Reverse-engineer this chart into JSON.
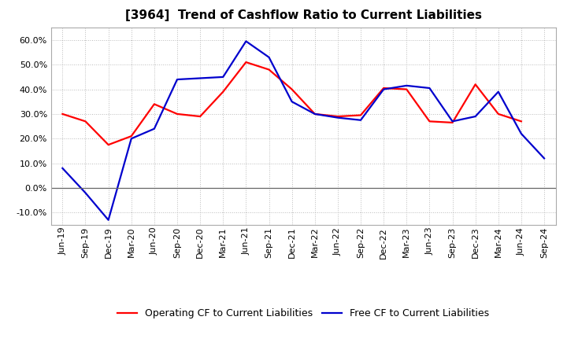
{
  "title": "[3964]  Trend of Cashflow Ratio to Current Liabilities",
  "x_labels": [
    "Jun-19",
    "Sep-19",
    "Dec-19",
    "Mar-20",
    "Jun-20",
    "Sep-20",
    "Dec-20",
    "Mar-21",
    "Jun-21",
    "Sep-21",
    "Dec-21",
    "Mar-22",
    "Jun-22",
    "Sep-22",
    "Dec-22",
    "Mar-23",
    "Jun-23",
    "Sep-23",
    "Dec-23",
    "Mar-24",
    "Jun-24",
    "Sep-24"
  ],
  "operating_cf": [
    30.0,
    27.0,
    17.5,
    21.0,
    34.0,
    30.0,
    29.0,
    39.0,
    51.0,
    48.0,
    40.0,
    30.0,
    29.0,
    29.5,
    40.5,
    40.0,
    27.0,
    26.5,
    42.0,
    30.0,
    27.0,
    null
  ],
  "free_cf": [
    8.0,
    -2.0,
    -13.0,
    20.0,
    24.0,
    44.0,
    44.5,
    45.0,
    59.5,
    53.0,
    35.0,
    30.0,
    28.5,
    27.5,
    40.0,
    41.5,
    40.5,
    27.0,
    29.0,
    39.0,
    22.0,
    12.0
  ],
  "operating_cf_color": "#ff0000",
  "free_cf_color": "#0000cd",
  "ylim": [
    -15.0,
    65.0
  ],
  "yticks": [
    -10.0,
    0.0,
    10.0,
    20.0,
    30.0,
    40.0,
    50.0,
    60.0
  ],
  "background_color": "#ffffff",
  "plot_bg_color": "#ffffff",
  "grid_color": "#aaaaaa",
  "legend_operating": "Operating CF to Current Liabilities",
  "legend_free": "Free CF to Current Liabilities",
  "line_width": 1.6,
  "title_fontsize": 11,
  "tick_fontsize": 8,
  "legend_fontsize": 9
}
